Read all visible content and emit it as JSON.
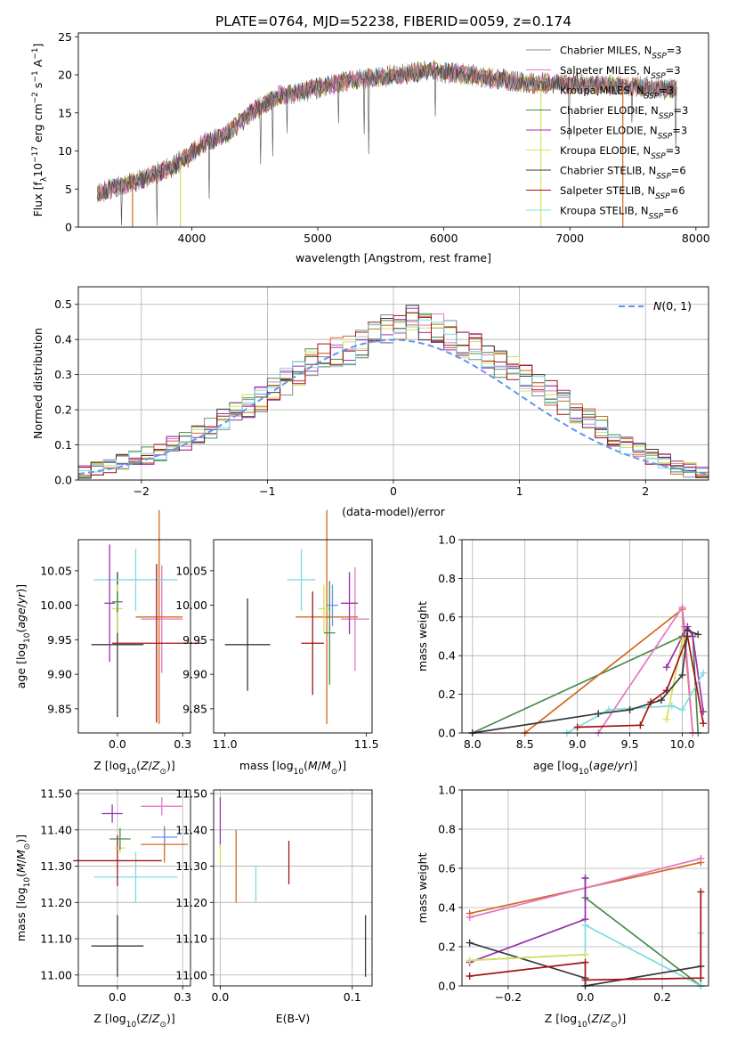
{
  "figure_title": "PLATE=0764, MJD=52238, FIBERID=0059, z=0.174",
  "legend": [
    {
      "label": "Chabrier MILES, N",
      "sub": "SSP",
      "suffix": "=3",
      "color": "#7f8c8d"
    },
    {
      "label": "Salpeter MILES, N",
      "sub": "SSP",
      "suffix": "=3",
      "color": "#e377c2"
    },
    {
      "label": "Kroupa MILES, N",
      "sub": "SSP",
      "suffix": "=3",
      "color": "#d2691e"
    },
    {
      "label": "Chabrier ELODIE, N",
      "sub": "SSP",
      "suffix": "=3",
      "color": "#4c8a4c"
    },
    {
      "label": "Salpeter ELODIE, N",
      "sub": "SSP",
      "suffix": "=3",
      "color": "#9b30b0"
    },
    {
      "label": "Kroupa ELODIE, N",
      "sub": "SSP",
      "suffix": "=3",
      "color": "#d4e157"
    },
    {
      "label": "Chabrier STELIB, N",
      "sub": "SSP",
      "suffix": "=6",
      "color": "#3a3a3a"
    },
    {
      "label": "Salpeter STELIB, N",
      "sub": "SSP",
      "suffix": "=6",
      "color": "#a31515"
    },
    {
      "label": "Kroupa STELIB, N",
      "sub": "SSP",
      "suffix": "=6",
      "color": "#7fdbe0"
    }
  ],
  "chart_data": [
    {
      "id": "spectrum",
      "type": "line",
      "title": "PLATE=0764, MJD=52238, FIBERID=0059, z=0.174",
      "xlabel": "wavelength [Angstrom, rest frame]",
      "ylabel": "Flux [f_λ 10^-17 erg cm^-2 s^-1 A^-1]",
      "xlim": [
        3100,
        8100
      ],
      "ylim": [
        0,
        25.5
      ],
      "xticks": [
        4000,
        5000,
        6000,
        7000,
        8000
      ],
      "yticks": [
        0,
        5,
        10,
        15,
        20,
        25
      ],
      "continuum": [
        [
          3250,
          4.3
        ],
        [
          3400,
          5.3
        ],
        [
          3600,
          6.2
        ],
        [
          3800,
          7.6
        ],
        [
          3950,
          9.0
        ],
        [
          4100,
          11.0
        ],
        [
          4300,
          12.5
        ],
        [
          4500,
          15.5
        ],
        [
          4700,
          17.2
        ],
        [
          5000,
          18.3
        ],
        [
          5300,
          19.4
        ],
        [
          5600,
          19.9
        ],
        [
          5900,
          20.6
        ],
        [
          6200,
          20.0
        ],
        [
          6600,
          19.0
        ],
        [
          7000,
          18.8
        ],
        [
          7400,
          18.6
        ],
        [
          7850,
          18.1
        ]
      ],
      "model_cutoffs": [
        3530,
        3910,
        6770,
        7420
      ],
      "grid": false
    },
    {
      "id": "residuals",
      "type": "bar",
      "xlabel": "(data-model)/error",
      "ylabel": "Normed distribution",
      "xlim": [
        -2.5,
        2.5
      ],
      "ylim": [
        0,
        0.55
      ],
      "xticks": [
        -2,
        -1,
        0,
        1,
        2
      ],
      "yticks": [
        0.0,
        0.1,
        0.2,
        0.3,
        0.4,
        0.5
      ],
      "bin_width": 0.1,
      "gaussian_label": "N(0,1)",
      "gaussian_color": "#6495ed",
      "histogram_center": [
        0.02,
        0.03,
        0.04,
        0.05,
        0.06,
        0.07,
        0.08,
        0.1,
        0.11,
        0.13,
        0.15,
        0.17,
        0.19,
        0.21,
        0.23,
        0.26,
        0.28,
        0.31,
        0.33,
        0.35,
        0.36,
        0.37,
        0.39,
        0.41,
        0.43,
        0.44,
        0.45,
        0.44,
        0.43,
        0.41,
        0.39,
        0.37,
        0.35,
        0.33,
        0.31,
        0.29,
        0.27,
        0.25,
        0.22,
        0.19,
        0.17,
        0.15,
        0.12,
        0.1,
        0.08,
        0.07,
        0.05,
        0.04,
        0.03,
        0.02
      ],
      "grid": true
    },
    {
      "id": "age_vs_Z",
      "type": "scatter",
      "xlabel": "Z [log10(Z/Z⊙)]",
      "ylabel": "age  [log10(age/yr)]",
      "xlim": [
        -0.15,
        0.28
      ],
      "ylim": [
        9.815,
        10.095
      ],
      "xticks": [
        0.0,
        0.25
      ],
      "yticks": [
        9.85,
        9.9,
        9.95,
        10.0,
        10.05
      ],
      "points": [
        {
          "x": 0.0,
          "xerr": 0.1,
          "y": 9.943,
          "yerr": 0.105,
          "color": "#3a3a3a"
        },
        {
          "x": 0.17,
          "xerr": 0.08,
          "y": 9.98,
          "yerr": 0.078,
          "color": "#e377c2"
        },
        {
          "x": 0.16,
          "xerr": 0.09,
          "y": 9.983,
          "yerr": 0.155,
          "color": "#d2691e"
        },
        {
          "x": 0.07,
          "xerr": 0.16,
          "y": 10.037,
          "yerr": 0.045,
          "color": "#7fdbe0"
        },
        {
          "x": 0.15,
          "xerr": 0.17,
          "y": 9.945,
          "yerr": 0.115,
          "color": "#a31515"
        },
        {
          "x": -0.03,
          "xerr": 0.02,
          "y": 10.003,
          "yerr": 0.085,
          "color": "#9b30b0"
        },
        {
          "x": 0.0,
          "xerr": 0.02,
          "y": 9.995,
          "yerr": 0.035,
          "color": "#d4e157"
        },
        {
          "x": 0.0,
          "xerr": 0.02,
          "y": 10.005,
          "yerr": 0.015,
          "color": "#4c8a4c"
        }
      ],
      "grid": false
    },
    {
      "id": "age_vs_mass",
      "type": "scatter",
      "xlabel": "mass [log10(M/M⊙)]",
      "ylabel": "",
      "xlim": [
        10.96,
        11.52
      ],
      "ylim": [
        9.815,
        10.095
      ],
      "xticks": [
        11.0,
        11.5
      ],
      "yticks": [
        9.85,
        9.9,
        9.95,
        10.0,
        10.05
      ],
      "points": [
        {
          "x": 11.08,
          "xerr": 0.08,
          "y": 9.943,
          "yerr": 0.067,
          "color": "#3a3a3a"
        },
        {
          "x": 11.46,
          "xerr": 0.05,
          "y": 9.98,
          "yerr": 0.075,
          "color": "#e377c2"
        },
        {
          "x": 11.36,
          "xerr": 0.11,
          "y": 9.983,
          "yerr": 0.155,
          "color": "#d2691e"
        },
        {
          "x": 11.27,
          "xerr": 0.05,
          "y": 10.037,
          "yerr": 0.045,
          "color": "#7fdbe0"
        },
        {
          "x": 11.31,
          "xerr": 0.04,
          "y": 9.945,
          "yerr": 0.075,
          "color": "#a31515"
        },
        {
          "x": 11.44,
          "xerr": 0.03,
          "y": 10.003,
          "yerr": 0.045,
          "color": "#9b30b0"
        },
        {
          "x": 11.35,
          "xerr": 0.02,
          "y": 9.995,
          "yerr": 0.035,
          "color": "#d4e157"
        },
        {
          "x": 11.37,
          "xerr": 0.02,
          "y": 9.96,
          "yerr": 0.075,
          "color": "#4c8a4c"
        },
        {
          "x": 11.38,
          "xerr": 0.02,
          "y": 10.0,
          "yerr": 0.03,
          "color": "#6495ed"
        }
      ],
      "grid": false
    },
    {
      "id": "mass_weight_vs_age",
      "type": "line",
      "xlabel": "age  [log10(age/yr)]",
      "ylabel": "mass weight",
      "xlim": [
        7.9,
        10.25
      ],
      "ylim": [
        0,
        1
      ],
      "xticks": [
        8.0,
        8.5,
        9.0,
        9.5,
        10.0
      ],
      "yticks": [
        0.0,
        0.2,
        0.4,
        0.6,
        0.8,
        1.0
      ],
      "series": [
        {
          "color": "#4c8a4c",
          "points": [
            [
              8.0,
              0.0
            ],
            [
              10.0,
              0.5
            ],
            [
              10.1,
              0.5
            ],
            [
              10.15,
              0.0
            ]
          ]
        },
        {
          "color": "#d2691e",
          "points": [
            [
              8.5,
              0.0
            ],
            [
              10.0,
              0.64
            ],
            [
              10.02,
              0.5
            ],
            [
              10.1,
              0.0
            ]
          ]
        },
        {
          "color": "#e377c2",
          "points": [
            [
              9.2,
              0.0
            ],
            [
              10.0,
              0.65
            ],
            [
              10.02,
              0.55
            ],
            [
              10.1,
              0.0
            ]
          ]
        },
        {
          "color": "#9b30b0",
          "points": [
            [
              9.85,
              0.34
            ],
            [
              10.05,
              0.55
            ],
            [
              10.1,
              0.5
            ],
            [
              10.2,
              0.11
            ]
          ]
        },
        {
          "color": "#d4e157",
          "points": [
            [
              9.85,
              0.07
            ],
            [
              10.0,
              0.48
            ],
            [
              10.05,
              0.5
            ]
          ]
        },
        {
          "color": "#7fdbe0",
          "points": [
            [
              8.9,
              0.0
            ],
            [
              9.3,
              0.12
            ],
            [
              9.9,
              0.14
            ],
            [
              10.0,
              0.12
            ],
            [
              10.2,
              0.31
            ]
          ]
        },
        {
          "color": "#a31515",
          "points": [
            [
              9.0,
              0.03
            ],
            [
              9.6,
              0.04
            ],
            [
              9.7,
              0.16
            ],
            [
              9.85,
              0.22
            ],
            [
              10.05,
              0.5
            ],
            [
              10.2,
              0.05
            ]
          ]
        },
        {
          "color": "#3a3a3a",
          "points": [
            [
              8.0,
              0.0
            ],
            [
              9.2,
              0.1
            ],
            [
              9.5,
              0.12
            ],
            [
              9.8,
              0.17
            ],
            [
              10.0,
              0.3
            ],
            [
              10.05,
              0.53
            ],
            [
              10.15,
              0.51
            ]
          ]
        }
      ],
      "grid": true
    },
    {
      "id": "mass_vs_Z",
      "type": "scatter",
      "xlabel": "Z [log10(Z/Z⊙)]",
      "ylabel": "mass [log10(M/M⊙)]",
      "xlim": [
        -0.15,
        0.28
      ],
      "ylim": [
        10.97,
        11.51
      ],
      "xticks": [
        0.0,
        0.25
      ],
      "yticks": [
        11.0,
        11.1,
        11.2,
        11.3,
        11.4,
        11.5
      ],
      "points": [
        {
          "x": 0.0,
          "xerr": 0.1,
          "y": 11.08,
          "yerr": 0.085,
          "color": "#3a3a3a"
        },
        {
          "x": 0.17,
          "xerr": 0.08,
          "y": 11.465,
          "yerr": 0.025,
          "color": "#e377c2"
        },
        {
          "x": 0.18,
          "xerr": 0.09,
          "y": 11.36,
          "yerr": 0.05,
          "color": "#d2691e"
        },
        {
          "x": 0.07,
          "xerr": 0.16,
          "y": 11.27,
          "yerr": 0.07,
          "color": "#7fdbe0"
        },
        {
          "x": -0.0,
          "xerr": 0.17,
          "y": 11.315,
          "yerr": 0.07,
          "color": "#a31515"
        },
        {
          "x": -0.02,
          "xerr": 0.04,
          "y": 11.445,
          "yerr": 0.025,
          "color": "#9b30b0"
        },
        {
          "x": 0.01,
          "xerr": 0.02,
          "y": 11.35,
          "yerr": 0.015,
          "color": "#d4e157"
        },
        {
          "x": 0.01,
          "xerr": 0.04,
          "y": 11.375,
          "yerr": 0.03,
          "color": "#4c8a4c"
        },
        {
          "x": 0.18,
          "xerr": 0.05,
          "y": 11.38,
          "yerr": 0.02,
          "color": "#6495ed"
        }
      ],
      "grid": true
    },
    {
      "id": "mass_vs_EBV",
      "type": "scatter",
      "xlabel": "E(B-V)",
      "ylabel": "",
      "xlim": [
        -0.005,
        0.115
      ],
      "ylim": [
        10.97,
        11.51
      ],
      "xticks": [
        0.0,
        0.1
      ],
      "yticks": [
        11.0,
        11.1,
        11.2,
        11.3,
        11.4,
        11.5
      ],
      "points": [
        {
          "x": 0.0,
          "xerr": 0,
          "y": 11.42,
          "yerr": 0.07,
          "color": "#9b30b0"
        },
        {
          "x": 0.0,
          "xerr": 0,
          "y": 11.33,
          "yerr": 0.03,
          "color": "#d4e157"
        },
        {
          "x": 0.012,
          "xerr": 0,
          "y": 11.3,
          "yerr": 0.1,
          "color": "#d2691e"
        },
        {
          "x": 0.027,
          "xerr": 0,
          "y": 11.25,
          "yerr": 0.05,
          "color": "#7fdbe0"
        },
        {
          "x": 0.052,
          "xerr": 0,
          "y": 11.31,
          "yerr": 0.06,
          "color": "#a31515"
        },
        {
          "x": 0.11,
          "xerr": 0,
          "y": 11.08,
          "yerr": 0.085,
          "color": "#3a3a3a"
        }
      ],
      "grid": true
    },
    {
      "id": "mass_weight_vs_Z",
      "type": "line",
      "xlabel": "Z [log10(Z/Z⊙)]",
      "ylabel": "mass weight",
      "xlim": [
        -0.32,
        0.32
      ],
      "ylim": [
        0,
        1
      ],
      "xticks": [
        -0.2,
        0.0,
        0.2
      ],
      "yticks": [
        0.0,
        0.2,
        0.4,
        0.6,
        0.8,
        1.0
      ],
      "series": [
        {
          "color": "#d2691e",
          "points": [
            [
              -0.3,
              0.37
            ],
            [
              0.3,
              0.63
            ]
          ]
        },
        {
          "color": "#e377c2",
          "points": [
            [
              -0.3,
              0.35
            ],
            [
              0.3,
              0.65
            ]
          ]
        },
        {
          "color": "#4c8a4c",
          "points": [
            [
              0.0,
              0.55
            ],
            [
              0.0,
              0.45
            ],
            [
              0.3,
              0.0
            ]
          ]
        },
        {
          "color": "#9b30b0",
          "points": [
            [
              -0.3,
              0.12
            ],
            [
              0.0,
              0.34
            ],
            [
              0.0,
              0.55
            ]
          ]
        },
        {
          "color": "#7fdbe0",
          "points": [
            [
              -0.3,
              0.13
            ],
            [
              0.0,
              0.16
            ],
            [
              0.0,
              0.31
            ],
            [
              0.3,
              0.0
            ],
            [
              0.3,
              0.27
            ]
          ]
        },
        {
          "color": "#3a3a3a",
          "points": [
            [
              -0.3,
              0.22
            ],
            [
              0.0,
              0.04
            ],
            [
              0.0,
              0.0
            ],
            [
              0.3,
              0.1
            ]
          ]
        },
        {
          "color": "#a31515",
          "points": [
            [
              -0.3,
              0.05
            ],
            [
              0.0,
              0.12
            ],
            [
              0.0,
              0.03
            ],
            [
              0.3,
              0.04
            ],
            [
              0.3,
              0.48
            ]
          ]
        },
        {
          "color": "#d4e157",
          "points": [
            [
              -0.3,
              0.13
            ],
            [
              0.0,
              0.16
            ]
          ]
        }
      ],
      "grid": true
    }
  ]
}
